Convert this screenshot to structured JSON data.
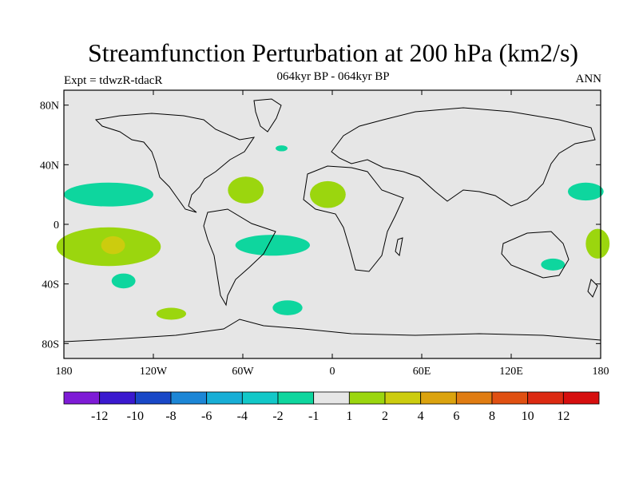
{
  "title": "Streamfunction Perturbation at 200 hPa (km2/s)",
  "subtitle": "064kyr BP - 064kyr BP",
  "expt_label": "Expt = tdwzR-tdacR",
  "season_label": "ANN",
  "lat_ticks": [
    {
      "value": 80,
      "label": "80N"
    },
    {
      "value": 40,
      "label": "40N"
    },
    {
      "value": 0,
      "label": "0"
    },
    {
      "value": -40,
      "label": "40S"
    },
    {
      "value": -80,
      "label": "80S"
    }
  ],
  "lon_ticks": [
    {
      "value": -180,
      "label": "180"
    },
    {
      "value": -120,
      "label": "120W"
    },
    {
      "value": -60,
      "label": "60W"
    },
    {
      "value": 0,
      "label": "0"
    },
    {
      "value": 60,
      "label": "60E"
    },
    {
      "value": 120,
      "label": "120E"
    },
    {
      "value": 180,
      "label": "180"
    }
  ],
  "colorbar": {
    "colors": [
      "#7e1bd6",
      "#3a19cf",
      "#1948c7",
      "#1c86d6",
      "#17aed6",
      "#12c8c8",
      "#0ed69e",
      "#e6e6e6",
      "#9bd60e",
      "#cccc0e",
      "#dba30e",
      "#e07c12",
      "#e05012",
      "#dc2a12",
      "#d60e0e"
    ],
    "labels": [
      "-12",
      "-10",
      "-8",
      "-6",
      "-4",
      "-2",
      "-1",
      "1",
      "2",
      "4",
      "6",
      "8",
      "10",
      "12"
    ]
  },
  "colors": {
    "neutral": "#e6e6e6",
    "pos_weak": "#9bd60e",
    "pos_mid": "#cccc0e",
    "neg_weak": "#0ed69e"
  },
  "anomaly_regions": [
    {
      "sign": "negative",
      "level": "-2 to -1",
      "lon": -150,
      "lat": 20,
      "lon_half": 30,
      "lat_half": 8
    },
    {
      "sign": "positive",
      "level": "1 to 2",
      "lon": -150,
      "lat": -15,
      "lon_half": 35,
      "lat_half": 13
    },
    {
      "sign": "positive",
      "level": "2 to 4",
      "lon": -147,
      "lat": -14,
      "lon_half": 8,
      "lat_half": 6
    },
    {
      "sign": "negative",
      "level": "-2 to -1",
      "lon": -140,
      "lat": -38,
      "lon_half": 8,
      "lat_half": 5
    },
    {
      "sign": "positive",
      "level": "1 to 2",
      "lon": -108,
      "lat": -60,
      "lon_half": 10,
      "lat_half": 4
    },
    {
      "sign": "positive",
      "level": "1 to 2",
      "lon": -58,
      "lat": 23,
      "lon_half": 12,
      "lat_half": 9
    },
    {
      "sign": "positive",
      "level": "1 to 2",
      "lon": -3,
      "lat": 20,
      "lon_half": 12,
      "lat_half": 9
    },
    {
      "sign": "negative",
      "level": "-2 to -1",
      "lon": -34,
      "lat": 51,
      "lon_half": 4,
      "lat_half": 2
    },
    {
      "sign": "negative",
      "level": "-2 to -1",
      "lon": -40,
      "lat": -14,
      "lon_half": 25,
      "lat_half": 7
    },
    {
      "sign": "negative",
      "level": "-2 to -1",
      "lon": -30,
      "lat": -56,
      "lon_half": 10,
      "lat_half": 5
    },
    {
      "sign": "negative",
      "level": "-2 to -1",
      "lon": 170,
      "lat": 22,
      "lon_half": 12,
      "lat_half": 6
    },
    {
      "sign": "positive",
      "level": "1 to 2",
      "lon": 178,
      "lat": -13,
      "lon_half": 8,
      "lat_half": 10
    },
    {
      "sign": "negative",
      "level": "-2 to -1",
      "lon": 148,
      "lat": -27,
      "lon_half": 8,
      "lat_half": 4
    }
  ]
}
